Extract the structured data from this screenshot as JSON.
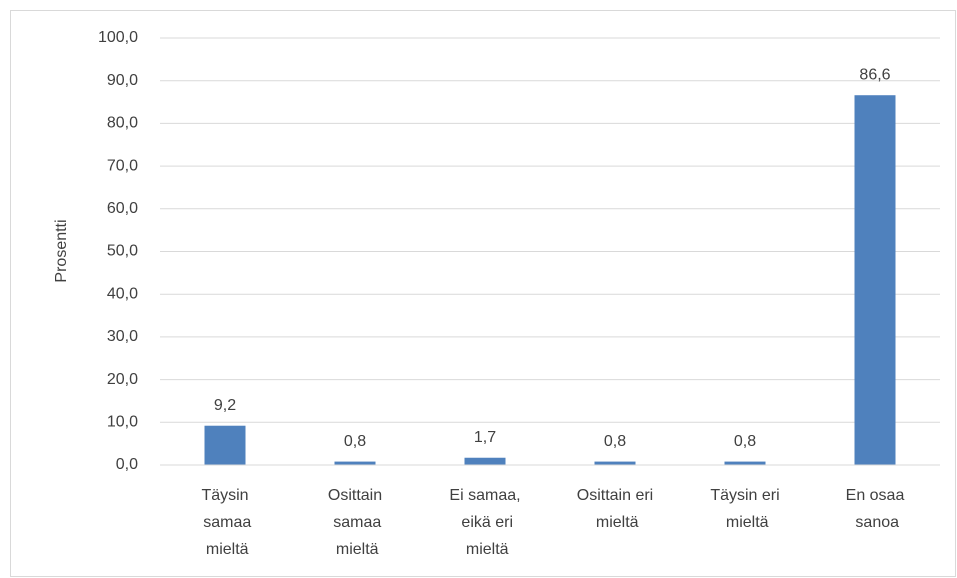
{
  "chart_data": {
    "type": "bar",
    "y_axis_label": "Prosentti",
    "categories": [
      "Täysin samaa mieltä",
      "Osittain samaa mieltä",
      "Ei samaa, eikä eri mieltä",
      "Osittain eri mieltä",
      "Täysin eri mieltä",
      "En osaa sanoa"
    ],
    "values": [
      9.2,
      0.8,
      1.7,
      0.8,
      0.8,
      86.6
    ],
    "value_labels": [
      "9,2",
      "0,8",
      "1,7",
      "0,8",
      "0,8",
      "86,6"
    ],
    "color": "#4f81bd",
    "ylim": [
      0,
      100
    ],
    "yticks": [
      {
        "value": 0,
        "label": "0,0"
      },
      {
        "value": 10,
        "label": "10,0"
      },
      {
        "value": 20,
        "label": "20,0"
      },
      {
        "value": 30,
        "label": "30,0"
      },
      {
        "value": 40,
        "label": "40,0"
      },
      {
        "value": 50,
        "label": "50,0"
      },
      {
        "value": 60,
        "label": "60,0"
      },
      {
        "value": 70,
        "label": "70,0"
      },
      {
        "value": 80,
        "label": "80,0"
      },
      {
        "value": 90,
        "label": "90,0"
      },
      {
        "value": 100,
        "label": "100,0"
      }
    ],
    "grid": true
  }
}
